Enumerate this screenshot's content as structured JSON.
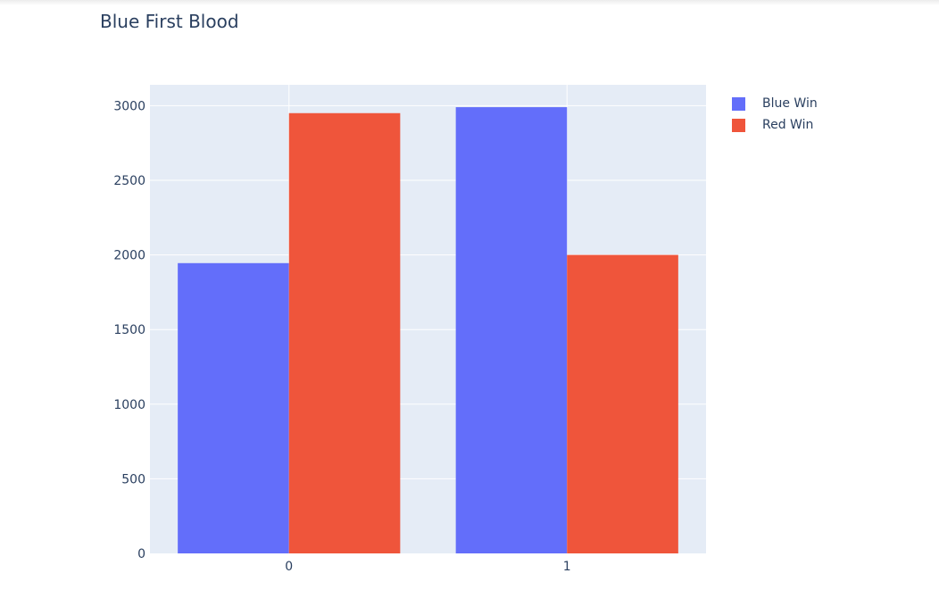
{
  "chart_data": {
    "type": "bar",
    "title": "Blue First Blood",
    "xlabel": "",
    "ylabel": "",
    "categories": [
      "0",
      "1"
    ],
    "series": [
      {
        "name": "Blue Win",
        "values": [
          1945,
          2990
        ],
        "color": "#636efa"
      },
      {
        "name": "Red Win",
        "values": [
          2950,
          2000
        ],
        "color": "#ef553b"
      }
    ],
    "ylim": [
      0,
      3140
    ],
    "yticks": [
      0,
      500,
      1000,
      1500,
      2000,
      2500,
      3000
    ],
    "grid": true,
    "plot_bgcolor": "#e5ecf6",
    "legend_position": "top-right"
  }
}
